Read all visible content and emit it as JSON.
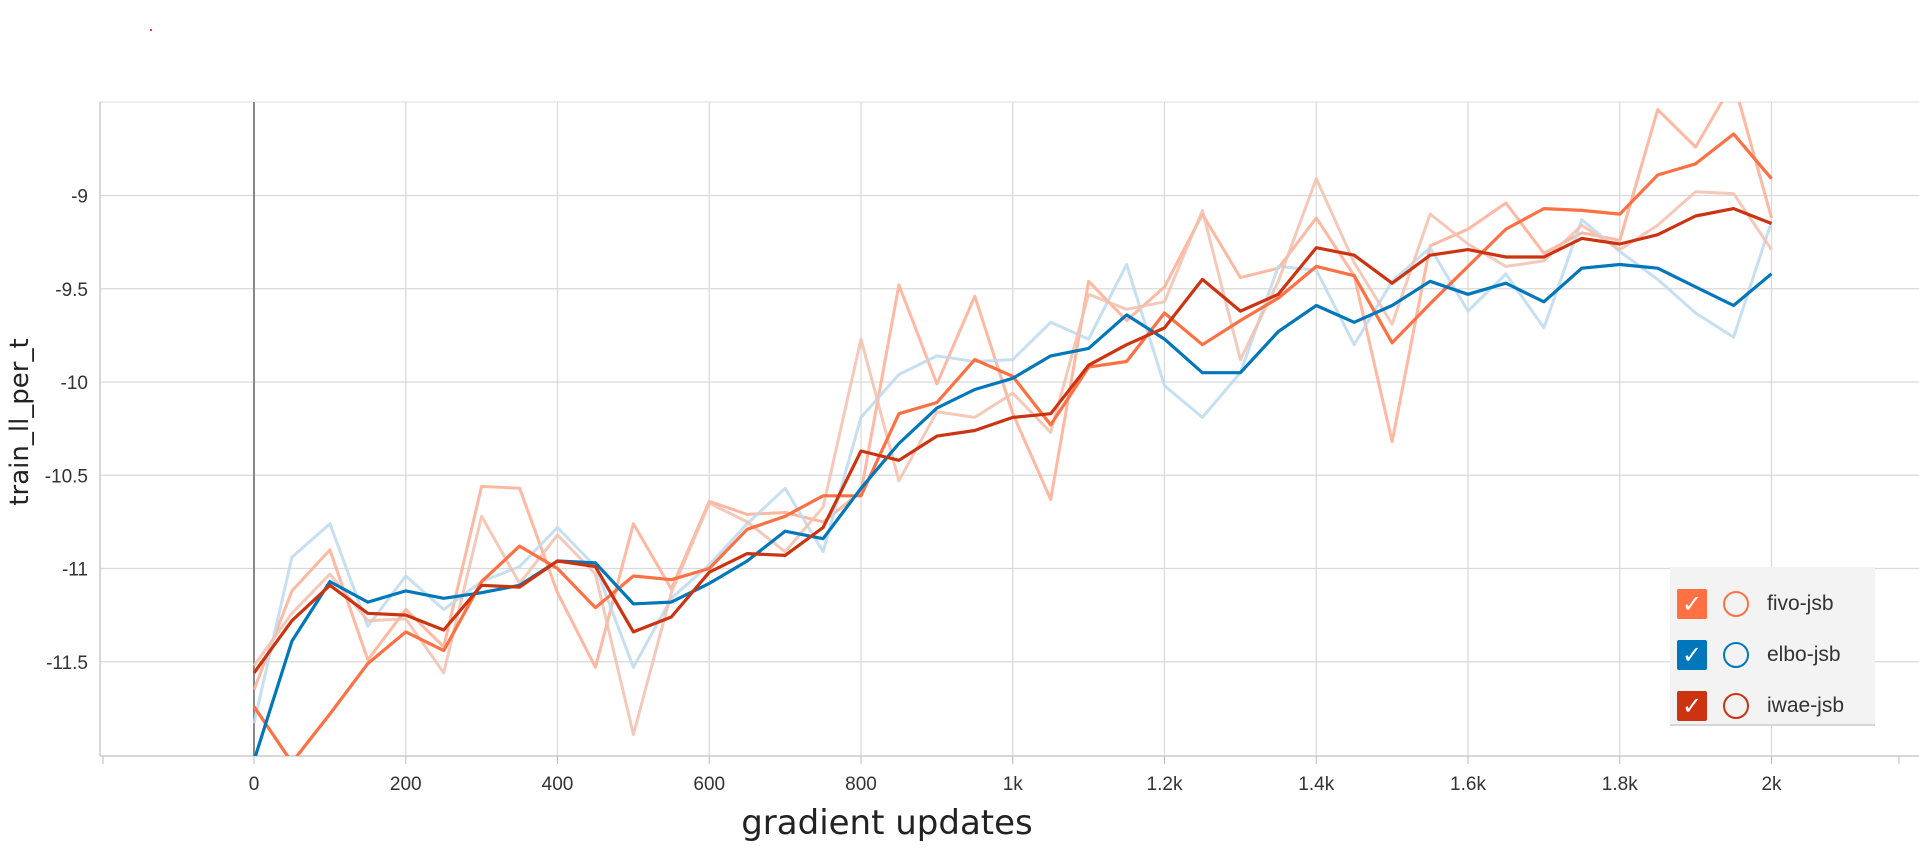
{
  "chart_data": {
    "type": "line",
    "title": "",
    "xlabel": "gradient updates",
    "ylabel": "train_ll_per_t",
    "xlim": [
      -200,
      2200
    ],
    "ylim": [
      -12,
      -8.5
    ],
    "grid": true,
    "legend_position": "bottom-right",
    "x_ticks": [
      0,
      200,
      400,
      600,
      800,
      1000,
      1200,
      1400,
      1600,
      1800,
      2000
    ],
    "x_tick_labels": [
      "0",
      "200",
      "400",
      "600",
      "800",
      "1k",
      "1.2k",
      "1.4k",
      "1.6k",
      "1.8k",
      "2k"
    ],
    "y_ticks": [
      -11.5,
      -11,
      -10.5,
      -10,
      -9.5,
      -9
    ],
    "y_tick_labels": [
      "-11.5",
      "-11",
      "-10.5",
      "-10",
      "-9.5",
      "-9"
    ],
    "x": [
      0,
      50,
      100,
      150,
      200,
      250,
      300,
      350,
      400,
      450,
      500,
      550,
      600,
      650,
      700,
      750,
      800,
      850,
      900,
      950,
      1000,
      1050,
      1100,
      1150,
      1200,
      1250,
      1300,
      1350,
      1400,
      1450,
      1500,
      1550,
      1600,
      1650,
      1700,
      1750,
      1800,
      1850,
      1900,
      1950,
      2000
    ],
    "series": [
      {
        "name": "fivo-jsb",
        "color": "#ff7043",
        "raw_color": "#ffab91",
        "values": [
          -11.74,
          -12.04,
          -11.78,
          -11.51,
          -11.34,
          -11.44,
          -11.07,
          -10.88,
          -11.0,
          -11.21,
          -11.04,
          -11.06,
          -11.0,
          -10.79,
          -10.72,
          -10.61,
          -10.61,
          -10.17,
          -10.11,
          -9.88,
          -9.97,
          -10.23,
          -9.92,
          -9.89,
          -9.63,
          -9.8,
          -9.67,
          -9.55,
          -9.38,
          -9.43,
          -9.79,
          -9.58,
          -9.38,
          -9.18,
          -9.07,
          -9.08,
          -9.1,
          -8.89,
          -8.83,
          -8.67,
          -8.91
        ],
        "raw_values": [
          -11.65,
          -11.12,
          -10.9,
          -11.49,
          -11.22,
          -11.42,
          -10.56,
          -10.57,
          -11.13,
          -11.53,
          -10.76,
          -11.11,
          -10.64,
          -10.71,
          -10.7,
          -10.75,
          -10.59,
          -9.48,
          -10.01,
          -9.54,
          -10.17,
          -10.63,
          -9.46,
          -9.67,
          -9.49,
          -9.1,
          -9.44,
          -9.39,
          -9.12,
          -9.43,
          -10.32,
          -9.27,
          -9.18,
          -9.04,
          -9.31,
          -9.2,
          -9.24,
          -8.54,
          -8.74,
          -8.39,
          -9.12
        ]
      },
      {
        "name": "elbo-jsb",
        "color": "#0077bb",
        "raw_color": "#bcd9ee",
        "values": [
          -12.03,
          -11.39,
          -11.07,
          -11.18,
          -11.12,
          -11.16,
          -11.13,
          -11.09,
          -10.96,
          -10.97,
          -11.19,
          -11.18,
          -11.08,
          -10.96,
          -10.8,
          -10.84,
          -10.57,
          -10.33,
          -10.14,
          -10.04,
          -9.98,
          -9.86,
          -9.82,
          -9.64,
          -9.77,
          -9.95,
          -9.95,
          -9.73,
          -9.59,
          -9.68,
          -9.59,
          -9.46,
          -9.53,
          -9.47,
          -9.57,
          -9.39,
          -9.37,
          -9.39,
          -9.49,
          -9.59,
          -9.42
        ],
        "raw_values": [
          -11.83,
          -10.94,
          -10.76,
          -11.31,
          -11.04,
          -11.22,
          -11.07,
          -10.99,
          -10.78,
          -10.99,
          -11.53,
          -11.16,
          -10.98,
          -10.76,
          -10.57,
          -10.91,
          -10.19,
          -9.96,
          -9.86,
          -9.89,
          -9.88,
          -9.68,
          -9.77,
          -9.37,
          -10.02,
          -10.19,
          -9.95,
          -9.38,
          -9.4,
          -9.8,
          -9.46,
          -9.28,
          -9.62,
          -9.42,
          -9.71,
          -9.13,
          -9.3,
          -9.45,
          -9.63,
          -9.76,
          -9.14
        ]
      },
      {
        "name": "iwae-jsb",
        "color": "#cc3311",
        "raw_color": "#f2bfae",
        "values": [
          -11.56,
          -11.28,
          -11.09,
          -11.24,
          -11.25,
          -11.33,
          -11.09,
          -11.1,
          -10.96,
          -10.99,
          -11.34,
          -11.26,
          -11.02,
          -10.92,
          -10.93,
          -10.78,
          -10.37,
          -10.42,
          -10.29,
          -10.26,
          -10.19,
          -10.17,
          -9.91,
          -9.8,
          -9.71,
          -9.45,
          -9.62,
          -9.53,
          -9.28,
          -9.32,
          -9.47,
          -9.32,
          -9.29,
          -9.33,
          -9.33,
          -9.23,
          -9.26,
          -9.21,
          -9.11,
          -9.07,
          -9.15
        ],
        "raw_values": [
          -11.52,
          -11.24,
          -11.03,
          -11.28,
          -11.27,
          -11.56,
          -10.72,
          -11.08,
          -10.82,
          -11.03,
          -11.89,
          -11.13,
          -10.65,
          -10.75,
          -10.91,
          -10.67,
          -9.77,
          -10.53,
          -10.16,
          -10.19,
          -10.06,
          -10.27,
          -9.53,
          -9.61,
          -9.57,
          -9.08,
          -9.88,
          -9.46,
          -8.91,
          -9.36,
          -9.69,
          -9.1,
          -9.26,
          -9.38,
          -9.35,
          -9.16,
          -9.29,
          -9.16,
          -8.98,
          -8.99,
          -9.29
        ]
      }
    ]
  },
  "legend": {
    "items": [
      {
        "label": "fivo-jsb",
        "color": "#ff7043"
      },
      {
        "label": "elbo-jsb",
        "color": "#0077bb"
      },
      {
        "label": "iwae-jsb",
        "color": "#cc3311"
      }
    ]
  }
}
